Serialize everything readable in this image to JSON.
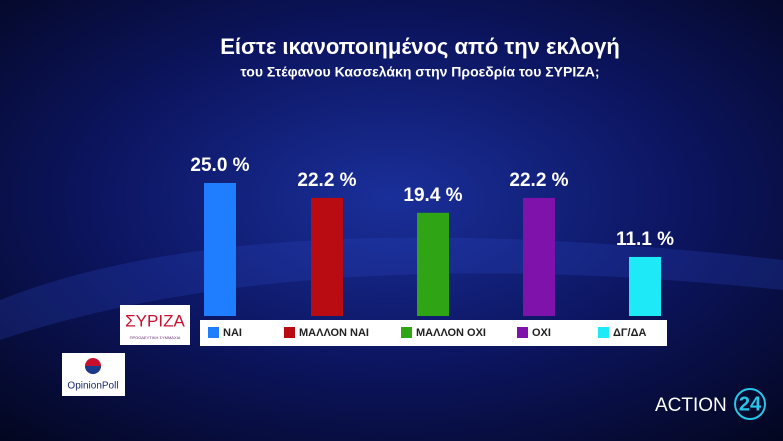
{
  "chart_data": {
    "type": "bar",
    "title": "Είστε ικανοποιημένος από την εκλογή",
    "subtitle": "του Στέφανου Κασσελάκη στην Προεδρία  του ΣΥΡΙΖΑ;",
    "categories": [
      "ΝΑΙ",
      "ΜΑΛΛΟΝ ΝΑΙ",
      "ΜΑΛΛΟΝ ΟΧΙ",
      "ΟΧΙ",
      "ΔΓ/ΔΑ"
    ],
    "values": [
      25.0,
      22.2,
      19.4,
      22.2,
      11.1
    ],
    "value_labels": [
      "25.0 %",
      "22.2 %",
      "19.4 %",
      "22.2 %",
      "11.1 %"
    ],
    "colors": [
      "#1f7dff",
      "#b80b12",
      "#2fa414",
      "#7e12aa",
      "#1ee9f6"
    ]
  },
  "branding": {
    "party_logo": "ΣΥΡΙΖΑ",
    "party_subtitle": "ΠΡΟΟΔΕΥΤΙΚΗ ΣΥΜΜΑΧΙΑ",
    "pollster": "OpinionPoll",
    "channel": "ACTION",
    "channel_number": "24"
  }
}
